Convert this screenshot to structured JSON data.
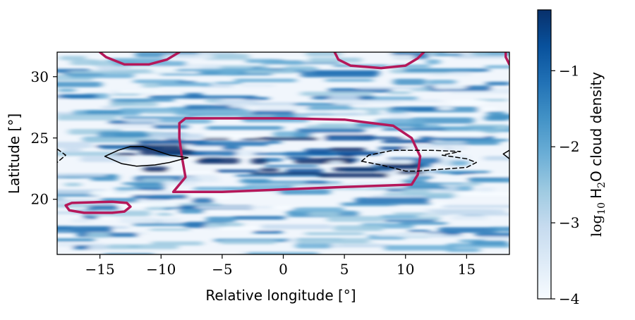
{
  "chart_data": {
    "type": "heatmap",
    "xlabel": "Relative longitude [°]",
    "ylabel": "Latitude [°]",
    "xlim": [
      -18.5,
      18.5
    ],
    "ylim": [
      15.5,
      32
    ],
    "x_ticks": [
      -15,
      -10,
      -5,
      0,
      5,
      10,
      15
    ],
    "x_tick_labels": [
      "−15",
      "−10",
      "−5",
      "0",
      "5",
      "10",
      "15"
    ],
    "y_ticks": [
      20,
      25,
      30
    ],
    "y_tick_labels": [
      "20",
      "25",
      "30"
    ],
    "colormap": "Blues",
    "colorbar": {
      "label_prefix": "log",
      "label_sub": "10",
      "label_species": "H",
      "label_species_sub": "2",
      "label_suffix": "O cloud density",
      "range": [
        -4,
        -0.2
      ],
      "ticks": [
        -4,
        -3,
        -2,
        -1
      ],
      "tick_labels": [
        "−4",
        "−3",
        "−2",
        "−1"
      ]
    },
    "high_density_band": {
      "lat_center": 23.5,
      "lon_range": [
        -10,
        10
      ],
      "peak_log_density": -0.3
    },
    "contours": [
      {
        "name": "crimson",
        "color": "#b5185a",
        "style": "solid",
        "width": "thick",
        "paths": [
          [
            [
              -8.5,
              26.2
            ],
            [
              -8,
              26.6
            ],
            [
              0,
              26.6
            ],
            [
              5,
              26.5
            ],
            [
              9,
              26.0
            ],
            [
              10.5,
              25.0
            ],
            [
              11.2,
              23.5
            ],
            [
              11,
              22
            ],
            [
              10.5,
              21.2
            ],
            [
              5,
              21.0
            ],
            [
              0,
              20.8
            ],
            [
              -5,
              20.6
            ],
            [
              -9,
              20.6
            ],
            [
              -8.5,
              21.2
            ],
            [
              -8,
              21.8
            ],
            [
              -8.3,
              23.5
            ],
            [
              -8.5,
              25
            ],
            [
              -8.5,
              26.2
            ]
          ],
          [
            [
              -15,
              32
            ],
            [
              -14.5,
              31.6
            ],
            [
              -13,
              31.0
            ],
            [
              -11,
              31.0
            ],
            [
              -9.5,
              31.4
            ],
            [
              -8.5,
              32
            ]
          ],
          [
            [
              4.2,
              32
            ],
            [
              4.5,
              31.4
            ],
            [
              5.5,
              30.9
            ],
            [
              8,
              30.7
            ],
            [
              10,
              30.9
            ],
            [
              11,
              31.5
            ],
            [
              11.5,
              32
            ]
          ],
          [
            [
              18.5,
              31.0
            ],
            [
              18.2,
              31.6
            ],
            [
              18.2,
              32
            ]
          ],
          [
            [
              -17.8,
              19.5
            ],
            [
              -17.3,
              19.7
            ],
            [
              -14,
              19.8
            ],
            [
              -12.8,
              19.7
            ],
            [
              -12.5,
              19.4
            ],
            [
              -13,
              19.0
            ],
            [
              -14,
              18.9
            ],
            [
              -16.3,
              18.9
            ],
            [
              -17.5,
              19.1
            ],
            [
              -17.8,
              19.5
            ]
          ]
        ]
      },
      {
        "name": "black-solid",
        "color": "#000000",
        "style": "solid",
        "width": "thin",
        "paths": [
          [
            [
              -14.6,
              23.5
            ],
            [
              -13.5,
              24.0
            ],
            [
              -12.5,
              24.3
            ],
            [
              -11.5,
              24.3
            ],
            [
              -10.5,
              24.0
            ],
            [
              -9.3,
              23.6
            ],
            [
              -7.8,
              23.4
            ],
            [
              -9.3,
              23.0
            ],
            [
              -10.5,
              22.8
            ],
            [
              -12.0,
              22.7
            ],
            [
              -13.2,
              22.9
            ],
            [
              -14.6,
              23.5
            ]
          ],
          [
            [
              18.5,
              24.0
            ],
            [
              18.0,
              23.7
            ],
            [
              18.5,
              23.3
            ]
          ]
        ]
      },
      {
        "name": "black-dashed",
        "color": "#000000",
        "style": "dashed",
        "width": "thin",
        "paths": [
          [
            [
              6.4,
              23.1
            ],
            [
              7,
              23.6
            ],
            [
              9,
              24.0
            ],
            [
              12,
              24.0
            ],
            [
              14.5,
              23.9
            ],
            [
              13,
              23.6
            ],
            [
              15,
              23.3
            ],
            [
              15.8,
              23.0
            ],
            [
              15,
              22.6
            ],
            [
              11,
              22.3
            ],
            [
              10,
              22.3
            ],
            [
              9.2,
              22.5
            ],
            [
              8.0,
              22.8
            ],
            [
              6.4,
              23.1
            ]
          ],
          [
            [
              -18.5,
              24.1
            ],
            [
              -17.8,
              23.6
            ],
            [
              -18.5,
              23.0
            ]
          ]
        ]
      }
    ]
  }
}
